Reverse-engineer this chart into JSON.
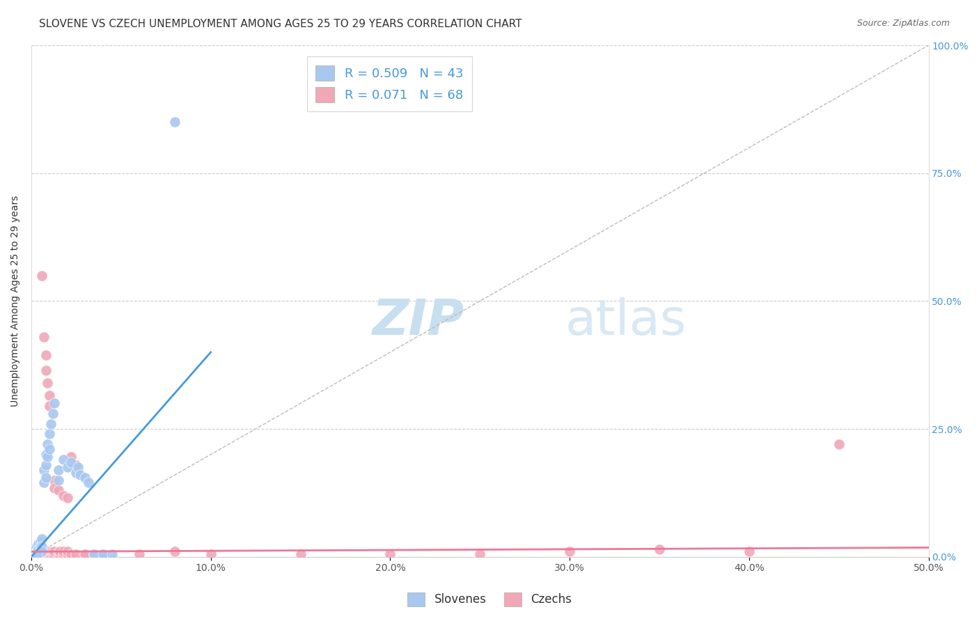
{
  "title": "SLOVENE VS CZECH UNEMPLOYMENT AMONG AGES 25 TO 29 YEARS CORRELATION CHART",
  "source": "Source: ZipAtlas.com",
  "xlabel_ticks": [
    "0.0%",
    "10.0%",
    "20.0%",
    "30.0%",
    "40.0%",
    "50.0%"
  ],
  "xlabel_values": [
    0,
    0.1,
    0.2,
    0.3,
    0.4,
    0.5
  ],
  "ylabel_ticks": [
    "0.0%",
    "25.0%",
    "50.0%",
    "75.0%",
    "100.0%"
  ],
  "ylabel_values": [
    0,
    0.25,
    0.5,
    0.75,
    1.0
  ],
  "ylabel_label": "Unemployment Among Ages 25 to 29 years",
  "xlim": [
    0,
    0.5
  ],
  "ylim": [
    0,
    1.0
  ],
  "watermark_zip": "ZIP",
  "watermark_atlas": "atlas",
  "legend_entries": [
    {
      "label": "Slovenes",
      "R": "0.509",
      "N": "43",
      "color": "#a8c8f0"
    },
    {
      "label": "Czechs",
      "R": "0.071",
      "N": "68",
      "color": "#f0a8b8"
    }
  ],
  "slovene_points": [
    [
      0.001,
      0.005
    ],
    [
      0.001,
      0.01
    ],
    [
      0.002,
      0.01
    ],
    [
      0.002,
      0.015
    ],
    [
      0.002,
      0.005
    ],
    [
      0.003,
      0.02
    ],
    [
      0.003,
      0.01
    ],
    [
      0.003,
      0.005
    ],
    [
      0.004,
      0.025
    ],
    [
      0.004,
      0.015
    ],
    [
      0.005,
      0.03
    ],
    [
      0.005,
      0.02
    ],
    [
      0.005,
      0.01
    ],
    [
      0.006,
      0.035
    ],
    [
      0.006,
      0.02
    ],
    [
      0.006,
      0.01
    ],
    [
      0.007,
      0.17
    ],
    [
      0.007,
      0.145
    ],
    [
      0.008,
      0.2
    ],
    [
      0.008,
      0.18
    ],
    [
      0.008,
      0.155
    ],
    [
      0.009,
      0.22
    ],
    [
      0.009,
      0.195
    ],
    [
      0.01,
      0.24
    ],
    [
      0.01,
      0.21
    ],
    [
      0.011,
      0.26
    ],
    [
      0.012,
      0.28
    ],
    [
      0.013,
      0.3
    ],
    [
      0.015,
      0.17
    ],
    [
      0.015,
      0.15
    ],
    [
      0.018,
      0.19
    ],
    [
      0.02,
      0.175
    ],
    [
      0.022,
      0.185
    ],
    [
      0.025,
      0.165
    ],
    [
      0.026,
      0.175
    ],
    [
      0.027,
      0.16
    ],
    [
      0.03,
      0.155
    ],
    [
      0.032,
      0.145
    ],
    [
      0.035,
      0.005
    ],
    [
      0.04,
      0.005
    ],
    [
      0.045,
      0.005
    ],
    [
      0.08,
      0.85
    ],
    [
      0.003,
      0.003
    ]
  ],
  "czech_points": [
    [
      0.001,
      0.005
    ],
    [
      0.001,
      0.01
    ],
    [
      0.002,
      0.005
    ],
    [
      0.002,
      0.01
    ],
    [
      0.002,
      0.015
    ],
    [
      0.003,
      0.005
    ],
    [
      0.003,
      0.01
    ],
    [
      0.003,
      0.015
    ],
    [
      0.004,
      0.005
    ],
    [
      0.004,
      0.01
    ],
    [
      0.004,
      0.02
    ],
    [
      0.005,
      0.005
    ],
    [
      0.005,
      0.01
    ],
    [
      0.005,
      0.015
    ],
    [
      0.006,
      0.005
    ],
    [
      0.006,
      0.01
    ],
    [
      0.006,
      0.55
    ],
    [
      0.007,
      0.005
    ],
    [
      0.007,
      0.01
    ],
    [
      0.007,
      0.43
    ],
    [
      0.008,
      0.005
    ],
    [
      0.008,
      0.01
    ],
    [
      0.008,
      0.395
    ],
    [
      0.008,
      0.365
    ],
    [
      0.009,
      0.005
    ],
    [
      0.009,
      0.01
    ],
    [
      0.009,
      0.34
    ],
    [
      0.01,
      0.005
    ],
    [
      0.01,
      0.01
    ],
    [
      0.01,
      0.315
    ],
    [
      0.01,
      0.295
    ],
    [
      0.011,
      0.005
    ],
    [
      0.011,
      0.01
    ],
    [
      0.012,
      0.005
    ],
    [
      0.012,
      0.01
    ],
    [
      0.013,
      0.005
    ],
    [
      0.013,
      0.01
    ],
    [
      0.013,
      0.15
    ],
    [
      0.013,
      0.135
    ],
    [
      0.015,
      0.005
    ],
    [
      0.015,
      0.01
    ],
    [
      0.015,
      0.13
    ],
    [
      0.016,
      0.005
    ],
    [
      0.016,
      0.01
    ],
    [
      0.018,
      0.005
    ],
    [
      0.018,
      0.01
    ],
    [
      0.018,
      0.12
    ],
    [
      0.02,
      0.005
    ],
    [
      0.02,
      0.01
    ],
    [
      0.02,
      0.115
    ],
    [
      0.022,
      0.005
    ],
    [
      0.022,
      0.195
    ],
    [
      0.025,
      0.005
    ],
    [
      0.025,
      0.18
    ],
    [
      0.03,
      0.005
    ],
    [
      0.03,
      0.005
    ],
    [
      0.035,
      0.005
    ],
    [
      0.04,
      0.005
    ],
    [
      0.06,
      0.005
    ],
    [
      0.08,
      0.01
    ],
    [
      0.1,
      0.005
    ],
    [
      0.15,
      0.005
    ],
    [
      0.2,
      0.005
    ],
    [
      0.25,
      0.005
    ],
    [
      0.3,
      0.01
    ],
    [
      0.35,
      0.015
    ],
    [
      0.4,
      0.01
    ],
    [
      0.45,
      0.22
    ]
  ],
  "slovene_line": {
    "x": [
      0.0,
      0.1
    ],
    "y": [
      0.0,
      0.4
    ]
  },
  "czech_line": {
    "x": [
      0.0,
      0.5
    ],
    "y": [
      0.01,
      0.018
    ]
  },
  "diagonal_line": {
    "x": [
      0,
      0.5
    ],
    "y": [
      0,
      1.0
    ]
  },
  "blue_color": "#a8c8f0",
  "pink_color": "#f0a8b8",
  "blue_dark": "#4499dd",
  "pink_dark": "#ee7799",
  "title_fontsize": 11,
  "source_fontsize": 9,
  "label_fontsize": 10,
  "tick_fontsize": 10,
  "watermark_color_zip": "#c8dff0",
  "watermark_color_atlas": "#d8e8f4",
  "watermark_fontsize": 52
}
